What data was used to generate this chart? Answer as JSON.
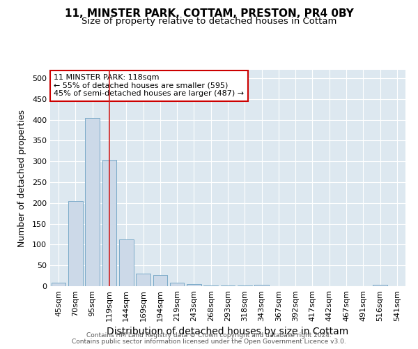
{
  "title": "11, MINSTER PARK, COTTAM, PRESTON, PR4 0BY",
  "subtitle": "Size of property relative to detached houses in Cottam",
  "xlabel": "Distribution of detached houses by size in Cottam",
  "ylabel": "Number of detached properties",
  "categories": [
    "45sqm",
    "70sqm",
    "95sqm",
    "119sqm",
    "144sqm",
    "169sqm",
    "194sqm",
    "219sqm",
    "243sqm",
    "268sqm",
    "293sqm",
    "318sqm",
    "343sqm",
    "367sqm",
    "392sqm",
    "417sqm",
    "442sqm",
    "467sqm",
    "491sqm",
    "516sqm",
    "541sqm"
  ],
  "values": [
    8,
    204,
    405,
    303,
    113,
    30,
    27,
    8,
    5,
    2,
    1,
    1,
    3,
    0,
    0,
    0,
    0,
    0,
    0,
    3,
    0
  ],
  "bar_color": "#ccd9e8",
  "bar_edge_color": "#7aaac8",
  "vline_x": 3,
  "vline_color": "#cc2222",
  "annotation_text": "11 MINSTER PARK: 118sqm\n← 55% of detached houses are smaller (595)\n45% of semi-detached houses are larger (487) →",
  "annotation_box_color": "#ffffff",
  "annotation_box_edge": "#cc0000",
  "ylim": [
    0,
    520
  ],
  "yticks": [
    0,
    50,
    100,
    150,
    200,
    250,
    300,
    350,
    400,
    450,
    500
  ],
  "background_color": "#dde8f0",
  "footer1": "Contains HM Land Registry data © Crown copyright and database right 2024.",
  "footer2": "Contains public sector information licensed under the Open Government Licence v3.0.",
  "title_fontsize": 11,
  "subtitle_fontsize": 9.5,
  "xlabel_fontsize": 10,
  "ylabel_fontsize": 9,
  "tick_fontsize": 8,
  "footer_fontsize": 6.5
}
